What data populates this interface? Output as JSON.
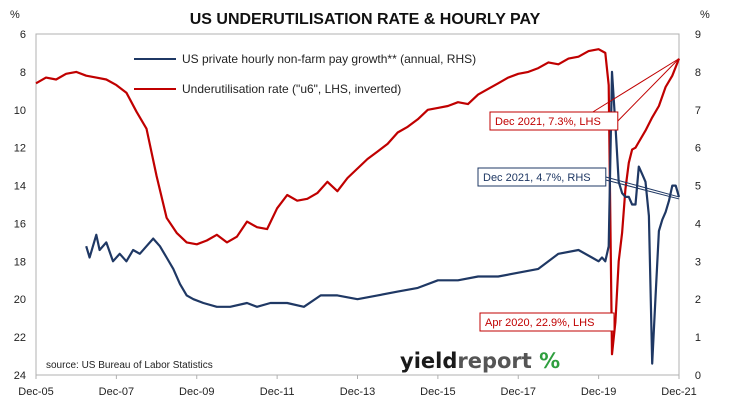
{
  "chart_data": {
    "type": "line",
    "title": "US UNDERUTILISATION RATE & HOURLY PAY",
    "left_unit": "%",
    "right_unit": "%",
    "left_axis": {
      "min": 6,
      "max": 24,
      "inverted": true,
      "ticks": [
        6,
        8,
        10,
        12,
        14,
        16,
        18,
        20,
        22,
        24
      ]
    },
    "right_axis": {
      "min": 0,
      "max": 9,
      "ticks": [
        0,
        1,
        2,
        3,
        4,
        5,
        6,
        7,
        8,
        9
      ]
    },
    "x_axis": {
      "start": "2005-12",
      "end": "2021-12",
      "ticks": [
        "Dec-05",
        "Dec-07",
        "Dec-09",
        "Dec-11",
        "Dec-13",
        "Dec-15",
        "Dec-17",
        "Dec-19",
        "Dec-21"
      ]
    },
    "legend_position": "top-center",
    "gridlines": false,
    "series": [
      {
        "name": "US private hourly non-farm pay growth** (annual, RHS)",
        "axis": "right",
        "color": "#1f3864",
        "points": [
          [
            "2007-03",
            3.4
          ],
          [
            "2007-04",
            3.1
          ],
          [
            "2007-06",
            3.7
          ],
          [
            "2007-07",
            3.3
          ],
          [
            "2007-09",
            3.5
          ],
          [
            "2007-11",
            3.0
          ],
          [
            "2008-01",
            3.2
          ],
          [
            "2008-03",
            3.0
          ],
          [
            "2008-05",
            3.3
          ],
          [
            "2008-07",
            3.2
          ],
          [
            "2008-09",
            3.4
          ],
          [
            "2008-11",
            3.6
          ],
          [
            "2009-01",
            3.4
          ],
          [
            "2009-03",
            3.1
          ],
          [
            "2009-05",
            2.8
          ],
          [
            "2009-07",
            2.4
          ],
          [
            "2009-09",
            2.1
          ],
          [
            "2009-11",
            2.0
          ],
          [
            "2010-02",
            1.9
          ],
          [
            "2010-06",
            1.8
          ],
          [
            "2010-10",
            1.8
          ],
          [
            "2011-03",
            1.9
          ],
          [
            "2011-06",
            1.8
          ],
          [
            "2011-10",
            1.9
          ],
          [
            "2012-03",
            1.9
          ],
          [
            "2012-08",
            1.8
          ],
          [
            "2013-01",
            2.1
          ],
          [
            "2013-06",
            2.1
          ],
          [
            "2013-12",
            2.0
          ],
          [
            "2014-06",
            2.1
          ],
          [
            "2014-12",
            2.2
          ],
          [
            "2015-06",
            2.3
          ],
          [
            "2015-12",
            2.5
          ],
          [
            "2016-06",
            2.5
          ],
          [
            "2016-12",
            2.6
          ],
          [
            "2017-06",
            2.6
          ],
          [
            "2017-12",
            2.7
          ],
          [
            "2018-06",
            2.8
          ],
          [
            "2018-12",
            3.2
          ],
          [
            "2019-06",
            3.3
          ],
          [
            "2019-10",
            3.1
          ],
          [
            "2019-12",
            3.0
          ],
          [
            "2020-01",
            3.1
          ],
          [
            "2020-02",
            3.0
          ],
          [
            "2020-03",
            3.4
          ],
          [
            "2020-04",
            8.0
          ],
          [
            "2020-05",
            6.6
          ],
          [
            "2020-06",
            5.1
          ],
          [
            "2020-07",
            4.8
          ],
          [
            "2020-08",
            4.7
          ],
          [
            "2020-09",
            4.7
          ],
          [
            "2020-10",
            4.5
          ],
          [
            "2020-11",
            4.5
          ],
          [
            "2020-12",
            5.5
          ],
          [
            "2021-01",
            5.3
          ],
          [
            "2021-02",
            5.1
          ],
          [
            "2021-03",
            4.2
          ],
          [
            "2021-04",
            0.3
          ],
          [
            "2021-05",
            2.1
          ],
          [
            "2021-06",
            3.8
          ],
          [
            "2021-07",
            4.1
          ],
          [
            "2021-08",
            4.3
          ],
          [
            "2021-09",
            4.6
          ],
          [
            "2021-10",
            5.0
          ],
          [
            "2021-11",
            5.0
          ],
          [
            "2021-12",
            4.7
          ]
        ]
      },
      {
        "name": "Underutilisation rate (\"u6\", LHS, inverted)",
        "axis": "left",
        "color": "#c00000",
        "points": [
          [
            "2005-12",
            8.6
          ],
          [
            "2006-03",
            8.3
          ],
          [
            "2006-06",
            8.4
          ],
          [
            "2006-09",
            8.1
          ],
          [
            "2006-12",
            8.0
          ],
          [
            "2007-03",
            8.2
          ],
          [
            "2007-06",
            8.3
          ],
          [
            "2007-09",
            8.4
          ],
          [
            "2007-12",
            8.7
          ],
          [
            "2008-03",
            9.1
          ],
          [
            "2008-06",
            10.1
          ],
          [
            "2008-09",
            11.0
          ],
          [
            "2008-12",
            13.5
          ],
          [
            "2009-03",
            15.7
          ],
          [
            "2009-06",
            16.5
          ],
          [
            "2009-09",
            17.0
          ],
          [
            "2009-12",
            17.1
          ],
          [
            "2010-03",
            16.9
          ],
          [
            "2010-06",
            16.6
          ],
          [
            "2010-09",
            17.0
          ],
          [
            "2010-12",
            16.7
          ],
          [
            "2011-03",
            15.9
          ],
          [
            "2011-06",
            16.2
          ],
          [
            "2011-09",
            16.3
          ],
          [
            "2011-12",
            15.2
          ],
          [
            "2012-03",
            14.5
          ],
          [
            "2012-06",
            14.8
          ],
          [
            "2012-09",
            14.7
          ],
          [
            "2012-12",
            14.4
          ],
          [
            "2013-03",
            13.8
          ],
          [
            "2013-06",
            14.3
          ],
          [
            "2013-09",
            13.6
          ],
          [
            "2013-12",
            13.1
          ],
          [
            "2014-03",
            12.6
          ],
          [
            "2014-06",
            12.2
          ],
          [
            "2014-09",
            11.8
          ],
          [
            "2014-12",
            11.2
          ],
          [
            "2015-03",
            10.9
          ],
          [
            "2015-06",
            10.5
          ],
          [
            "2015-09",
            10.0
          ],
          [
            "2015-12",
            9.9
          ],
          [
            "2016-03",
            9.8
          ],
          [
            "2016-06",
            9.6
          ],
          [
            "2016-09",
            9.7
          ],
          [
            "2016-12",
            9.2
          ],
          [
            "2017-03",
            8.9
          ],
          [
            "2017-06",
            8.6
          ],
          [
            "2017-09",
            8.3
          ],
          [
            "2017-12",
            8.1
          ],
          [
            "2018-03",
            8.0
          ],
          [
            "2018-06",
            7.8
          ],
          [
            "2018-09",
            7.5
          ],
          [
            "2018-12",
            7.6
          ],
          [
            "2019-03",
            7.3
          ],
          [
            "2019-06",
            7.2
          ],
          [
            "2019-09",
            6.9
          ],
          [
            "2019-12",
            6.8
          ],
          [
            "2020-02",
            7.0
          ],
          [
            "2020-03",
            8.7
          ],
          [
            "2020-04",
            22.9
          ],
          [
            "2020-05",
            21.2
          ],
          [
            "2020-06",
            18.0
          ],
          [
            "2020-07",
            16.5
          ],
          [
            "2020-08",
            14.2
          ],
          [
            "2020-09",
            12.8
          ],
          [
            "2020-10",
            12.1
          ],
          [
            "2020-11",
            12.0
          ],
          [
            "2020-12",
            11.7
          ],
          [
            "2021-02",
            11.1
          ],
          [
            "2021-04",
            10.4
          ],
          [
            "2021-06",
            9.8
          ],
          [
            "2021-08",
            8.8
          ],
          [
            "2021-10",
            8.2
          ],
          [
            "2021-12",
            7.3
          ]
        ]
      }
    ],
    "annotations": [
      {
        "text": "Dec 2021, 7.3%, LHS",
        "color": "#c00000",
        "series": 1,
        "point": [
          "2021-12",
          7.3
        ]
      },
      {
        "text": "Dec 2021, 4.7%, RHS",
        "color": "#1f3864",
        "series": 0,
        "point": [
          "2021-12",
          4.7
        ]
      },
      {
        "text": "Apr 2020, 22.9%, LHS",
        "color": "#c00000",
        "series": 1,
        "point": [
          "2020-04",
          22.9
        ]
      }
    ],
    "source": "source: US Bureau of Labor Statistics"
  },
  "logo": {
    "part1": "yield",
    "part2": "report",
    "symbol": "%"
  }
}
